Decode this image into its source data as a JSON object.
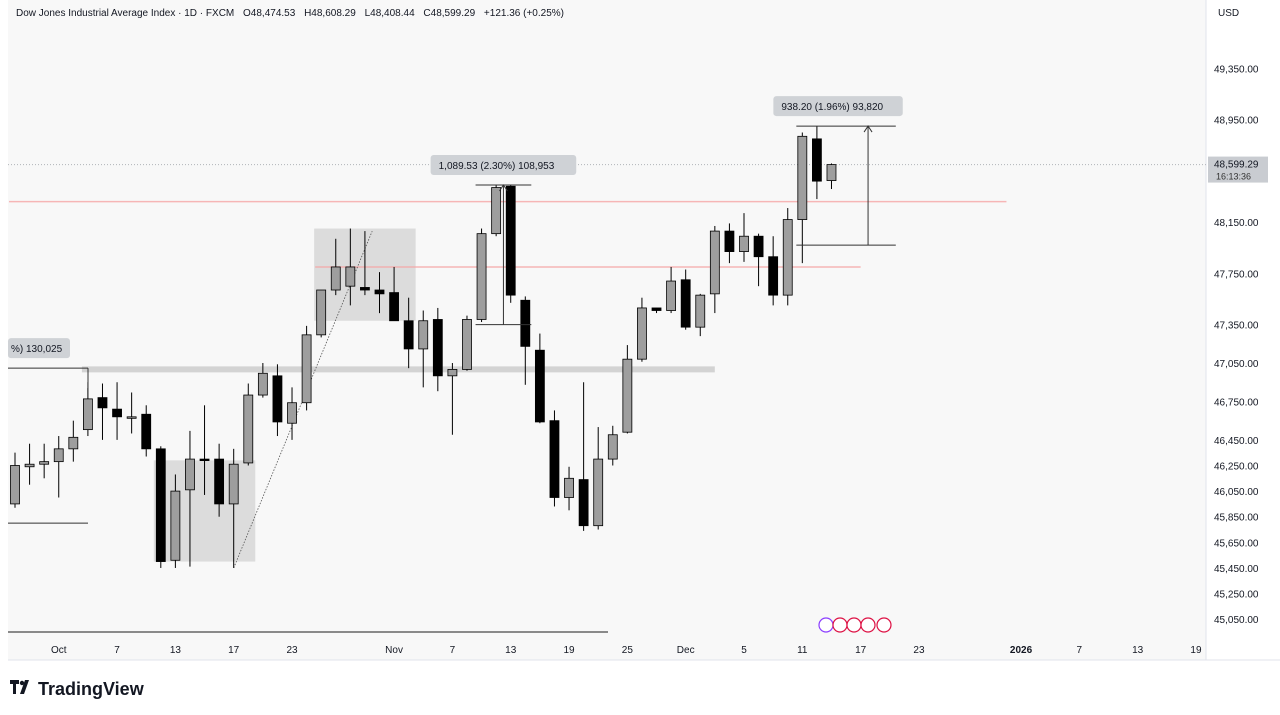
{
  "header": {
    "symbol": "Dow Jones Industrial Average Index · 1D · FXCM",
    "open": "O48,474.53",
    "high": "H48,608.29",
    "low": "L48,408.44",
    "close": "C48,599.29",
    "change": "+121.36 (+0.25%)"
  },
  "currency": "USD",
  "brand": "TradingView",
  "price_tag": {
    "value": "48,599.29",
    "timer": "16:13:36"
  },
  "colors": {
    "up_fill": "#9e9e9e",
    "down_fill": "#000000",
    "wick": "#000000",
    "zone": "#d3d3d3",
    "support": "#d0d0d0",
    "resistance": "#f6a6a6",
    "axis_text": "#131722",
    "label_bg": "#cfd2d6"
  },
  "chart_data": {
    "type": "candlestick",
    "y_scale": "linear",
    "ylim": [
      44950,
      49650
    ],
    "y_ticks": [
      {
        "value": 49350,
        "label": "49,350.00"
      },
      {
        "value": 48950,
        "label": "48,950.00"
      },
      {
        "value": 48150,
        "label": "48,150.00"
      },
      {
        "value": 47750,
        "label": "47,750.00"
      },
      {
        "value": 47350,
        "label": "47,350.00"
      },
      {
        "value": 47050,
        "label": "47,050.00"
      },
      {
        "value": 46750,
        "label": "46,750.00"
      },
      {
        "value": 46450,
        "label": "46,450.00"
      },
      {
        "value": 46250,
        "label": "46,250.00"
      },
      {
        "value": 46050,
        "label": "46,050.00"
      },
      {
        "value": 45850,
        "label": "45,850.00"
      },
      {
        "value": 45650,
        "label": "45,650.00"
      },
      {
        "value": 45450,
        "label": "45,450.00"
      },
      {
        "value": 45250,
        "label": "45,250.00"
      },
      {
        "value": 45050,
        "label": "45,050.00"
      }
    ],
    "x_ticks": [
      {
        "bar": 3,
        "label": "Oct"
      },
      {
        "bar": 7,
        "label": "7"
      },
      {
        "bar": 11,
        "label": "13"
      },
      {
        "bar": 15,
        "label": "17"
      },
      {
        "bar": 19,
        "label": "23"
      },
      {
        "bar": 26,
        "label": "Nov"
      },
      {
        "bar": 30,
        "label": "7"
      },
      {
        "bar": 34,
        "label": "13"
      },
      {
        "bar": 38,
        "label": "19"
      },
      {
        "bar": 42,
        "label": "25"
      },
      {
        "bar": 46,
        "label": "Dec"
      },
      {
        "bar": 50,
        "label": "5"
      },
      {
        "bar": 54,
        "label": "11"
      },
      {
        "bar": 58,
        "label": "17"
      },
      {
        "bar": 62,
        "label": "23"
      },
      {
        "bar": 69,
        "label": "2026"
      },
      {
        "bar": 73,
        "label": "7"
      },
      {
        "bar": 77,
        "label": "13"
      },
      {
        "bar": 81,
        "label": "19"
      }
    ],
    "candles": [
      {
        "o": 45950,
        "h": 46350,
        "l": 45920,
        "c": 46250
      },
      {
        "o": 46240,
        "h": 46420,
        "l": 46100,
        "c": 46260
      },
      {
        "o": 46260,
        "h": 46420,
        "l": 46150,
        "c": 46280
      },
      {
        "o": 46280,
        "h": 46480,
        "l": 46000,
        "c": 46380
      },
      {
        "o": 46380,
        "h": 46600,
        "l": 46280,
        "c": 46470
      },
      {
        "o": 46530,
        "h": 46900,
        "l": 46480,
        "c": 46770
      },
      {
        "o": 46780,
        "h": 46890,
        "l": 46450,
        "c": 46700
      },
      {
        "o": 46690,
        "h": 46900,
        "l": 46450,
        "c": 46630
      },
      {
        "o": 46620,
        "h": 46820,
        "l": 46500,
        "c": 46630
      },
      {
        "o": 46650,
        "h": 46720,
        "l": 46320,
        "c": 46380
      },
      {
        "o": 46380,
        "h": 46400,
        "l": 45450,
        "c": 45500
      },
      {
        "o": 45510,
        "h": 46180,
        "l": 45450,
        "c": 46050
      },
      {
        "o": 46060,
        "h": 46520,
        "l": 45460,
        "c": 46300
      },
      {
        "o": 46300,
        "h": 46720,
        "l": 46020,
        "c": 46290
      },
      {
        "o": 46300,
        "h": 46420,
        "l": 45850,
        "c": 45950
      },
      {
        "o": 45950,
        "h": 46380,
        "l": 45450,
        "c": 46260
      },
      {
        "o": 46270,
        "h": 46890,
        "l": 46250,
        "c": 46800
      },
      {
        "o": 46800,
        "h": 47050,
        "l": 46780,
        "c": 46970
      },
      {
        "o": 46950,
        "h": 47040,
        "l": 46480,
        "c": 46590
      },
      {
        "o": 46580,
        "h": 46860,
        "l": 46450,
        "c": 46740
      },
      {
        "o": 46740,
        "h": 47340,
        "l": 46680,
        "c": 47270
      },
      {
        "o": 47270,
        "h": 47620,
        "l": 47250,
        "c": 47620
      },
      {
        "o": 47620,
        "h": 48020,
        "l": 47580,
        "c": 47800
      },
      {
        "o": 47650,
        "h": 48100,
        "l": 47500,
        "c": 47800
      },
      {
        "o": 47640,
        "h": 48080,
        "l": 47580,
        "c": 47620
      },
      {
        "o": 47620,
        "h": 47760,
        "l": 47440,
        "c": 47590
      },
      {
        "o": 47600,
        "h": 47800,
        "l": 47380,
        "c": 47380
      },
      {
        "o": 47380,
        "h": 47560,
        "l": 47010,
        "c": 47160
      },
      {
        "o": 47160,
        "h": 47460,
        "l": 46860,
        "c": 47380
      },
      {
        "o": 47390,
        "h": 47480,
        "l": 46830,
        "c": 46950
      },
      {
        "o": 46950,
        "h": 47050,
        "l": 46490,
        "c": 47000
      },
      {
        "o": 47000,
        "h": 47420,
        "l": 46990,
        "c": 47390
      },
      {
        "o": 47390,
        "h": 48100,
        "l": 47370,
        "c": 48060
      },
      {
        "o": 48060,
        "h": 48440,
        "l": 48040,
        "c": 48420
      },
      {
        "o": 48430,
        "h": 48440,
        "l": 47520,
        "c": 47580
      },
      {
        "o": 47540,
        "h": 47570,
        "l": 46880,
        "c": 47180
      },
      {
        "o": 47150,
        "h": 47280,
        "l": 46580,
        "c": 46590
      },
      {
        "o": 46600,
        "h": 46680,
        "l": 45930,
        "c": 46000
      },
      {
        "o": 46000,
        "h": 46240,
        "l": 45900,
        "c": 46150
      },
      {
        "o": 46140,
        "h": 46900,
        "l": 45740,
        "c": 45780
      },
      {
        "o": 45780,
        "h": 46550,
        "l": 45750,
        "c": 46300
      },
      {
        "o": 46300,
        "h": 46560,
        "l": 46250,
        "c": 46490
      },
      {
        "o": 46510,
        "h": 47190,
        "l": 46500,
        "c": 47080
      },
      {
        "o": 47080,
        "h": 47560,
        "l": 47060,
        "c": 47480
      },
      {
        "o": 47480,
        "h": 47480,
        "l": 47440,
        "c": 47460
      },
      {
        "o": 47460,
        "h": 47800,
        "l": 47440,
        "c": 47690
      },
      {
        "o": 47700,
        "h": 47780,
        "l": 47310,
        "c": 47330
      },
      {
        "o": 47330,
        "h": 47590,
        "l": 47260,
        "c": 47580
      },
      {
        "o": 47590,
        "h": 48120,
        "l": 47440,
        "c": 48080
      },
      {
        "o": 48080,
        "h": 48140,
        "l": 47830,
        "c": 47920
      },
      {
        "o": 47920,
        "h": 48220,
        "l": 47840,
        "c": 48040
      },
      {
        "o": 48040,
        "h": 48060,
        "l": 47650,
        "c": 47880
      },
      {
        "o": 47880,
        "h": 48040,
        "l": 47500,
        "c": 47580
      },
      {
        "o": 47580,
        "h": 48260,
        "l": 47500,
        "c": 48170
      },
      {
        "o": 48170,
        "h": 48850,
        "l": 47830,
        "c": 48820
      },
      {
        "o": 48800,
        "h": 48900,
        "l": 48330,
        "c": 48470
      },
      {
        "o": 48474.53,
        "h": 48608.29,
        "l": 48408.44,
        "c": 48599.29
      }
    ],
    "horizontal_levels": [
      {
        "price": 47000,
        "style": "support",
        "from_bar": 5,
        "to_bar": 48
      },
      {
        "price": 48310,
        "style": "resistance",
        "from_bar": 0,
        "to_bar": 68
      },
      {
        "price": 47800,
        "style": "resistance",
        "from_bar": 21,
        "to_bar": 58
      }
    ],
    "zones": [
      {
        "from_bar": 10,
        "to_bar": 16,
        "top": 46290,
        "bottom": 45500
      },
      {
        "from_bar": 21,
        "to_bar": 27,
        "top": 48100,
        "bottom": 47380
      }
    ],
    "measurements": [
      {
        "label": "1,089.53 (2.30%) 108,953",
        "from_bar": 32,
        "to_bar": 35,
        "top": 48440,
        "bottom": 47350
      },
      {
        "label": "938.20 (1.96%) 93,820",
        "from_bar": 54,
        "to_bar": 60,
        "top": 48900,
        "bottom": 47970
      }
    ],
    "partial_measurement": {
      "label": "%) 130,025",
      "top": 47010,
      "bottom": 45800
    },
    "trendline": {
      "bar1": 15,
      "price1": 45450,
      "bar2": 24.5,
      "price2": 48080
    },
    "current_price": 48599.29
  }
}
